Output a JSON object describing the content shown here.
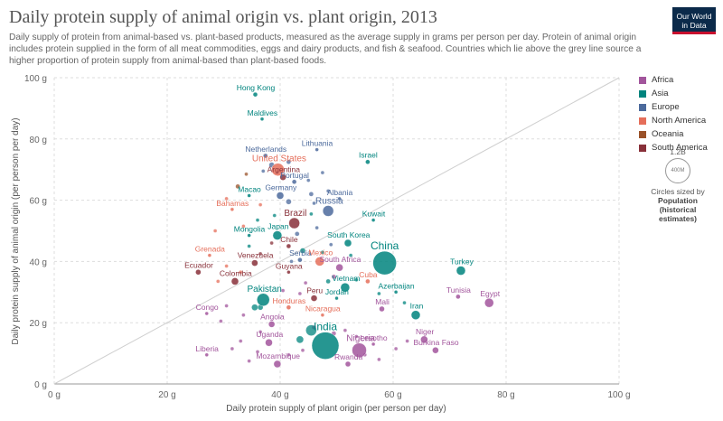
{
  "header": {
    "title": "Daily protein supply of animal origin vs. plant origin, 2013",
    "subtitle": "Daily supply of protein from animal-based vs. plant-based products, measured as the average supply in grams per person per day. Protein of animal origin includes protein supplied in the form of all meat commodities, eggs and dairy products, and fish & seafood. Countries which lie above the grey line source a higher proportion of protein supply from animal-based than plant-based foods.",
    "logo": "Our World in Data"
  },
  "size_legend": {
    "circle_max_label": "1.2B",
    "circle_min_label": "400M",
    "caption": "Circles sized by",
    "title": "Population",
    "subtitle": "(historical estimates)"
  },
  "colors": {
    "Africa": "#a2559c",
    "Asia": "#00847e",
    "Europe": "#4c6a9c",
    "North America": "#e56e5a",
    "Oceania": "#9a5129",
    "South America": "#883039"
  },
  "chart_data": {
    "type": "scatter",
    "xlabel": "Daily protein supply of plant origin (per person per day)",
    "ylabel": "Daily protein supply of animal origin (per person per day)",
    "xlim": [
      0,
      100
    ],
    "ylim": [
      0,
      100
    ],
    "x_ticks": [
      "0 g",
      "20 g",
      "40 g",
      "60 g",
      "80 g",
      "100 g"
    ],
    "y_ticks": [
      "0 g",
      "20 g",
      "40 g",
      "60 g",
      "80 g",
      "100 g"
    ],
    "grid": true,
    "reference_line": "y = x",
    "legend": [
      "Africa",
      "Asia",
      "Europe",
      "North America",
      "Oceania",
      "South America"
    ],
    "legend_position": "right",
    "points": [
      {
        "label": "Hong Kong",
        "continent": "Asia",
        "x": 35.6,
        "y": 94.5,
        "r": 2.5
      },
      {
        "label": "Maldives",
        "continent": "Asia",
        "x": 36.8,
        "y": 86.5,
        "r": 2
      },
      {
        "label": "Netherlands",
        "continent": "Europe",
        "x": 37.4,
        "y": 74.5,
        "r": 2.5
      },
      {
        "label": "Lithuania",
        "continent": "Europe",
        "x": 46.5,
        "y": 76.5,
        "r": 2
      },
      {
        "label": "Israel",
        "continent": "Asia",
        "x": 55.5,
        "y": 72.5,
        "r": 2.5
      },
      {
        "label": "United States",
        "continent": "North America",
        "x": 39.6,
        "y": 70,
        "r": 7
      },
      {
        "label": "Argentina",
        "continent": "South America",
        "x": 40.5,
        "y": 67.5,
        "r": 3.5
      },
      {
        "label": "Portugal",
        "continent": "Europe",
        "x": 42.5,
        "y": 66,
        "r": 2.5
      },
      {
        "label": "Germany",
        "continent": "Europe",
        "x": 40,
        "y": 61.5,
        "r": 4
      },
      {
        "label": "Macao",
        "continent": "Asia",
        "x": 34.5,
        "y": 61.5,
        "r": 2
      },
      {
        "label": "Albania",
        "continent": "Europe",
        "x": 50.5,
        "y": 60.5,
        "r": 2
      },
      {
        "label": "Russia",
        "continent": "Europe",
        "x": 48.5,
        "y": 56.5,
        "r": 6
      },
      {
        "label": "Bahamas",
        "continent": "North America",
        "x": 31.5,
        "y": 57,
        "r": 2
      },
      {
        "label": "Brazil",
        "continent": "South America",
        "x": 42.5,
        "y": 52.5,
        "r": 6
      },
      {
        "label": "Kuwait",
        "continent": "Asia",
        "x": 56.5,
        "y": 53.5,
        "r": 2
      },
      {
        "label": "Mongolia",
        "continent": "Asia",
        "x": 34.5,
        "y": 48.5,
        "r": 2
      },
      {
        "label": "Japan",
        "continent": "Asia",
        "x": 39.5,
        "y": 48.5,
        "r": 5
      },
      {
        "label": "South Korea",
        "continent": "Asia",
        "x": 52,
        "y": 46,
        "r": 4
      },
      {
        "label": "Chile",
        "continent": "South America",
        "x": 41.5,
        "y": 45,
        "r": 2.5
      },
      {
        "label": "China",
        "continent": "Asia",
        "x": 58.5,
        "y": 39.5,
        "r": 13
      },
      {
        "label": "Grenada",
        "continent": "North America",
        "x": 27.5,
        "y": 42,
        "r": 2
      },
      {
        "label": "Serbia",
        "continent": "Europe",
        "x": 43.5,
        "y": 40.5,
        "r": 2.5
      },
      {
        "label": "Mexico",
        "continent": "North America",
        "x": 47,
        "y": 40,
        "r": 5
      },
      {
        "label": "Venezuela",
        "continent": "South America",
        "x": 35.5,
        "y": 39.5,
        "r": 3.5
      },
      {
        "label": "Ecuador",
        "continent": "South America",
        "x": 25.5,
        "y": 36.5,
        "r": 3
      },
      {
        "label": "South Africa",
        "continent": "Africa",
        "x": 50.5,
        "y": 38,
        "r": 4
      },
      {
        "label": "Guyana",
        "continent": "South America",
        "x": 41.5,
        "y": 36.5,
        "r": 2
      },
      {
        "label": "Turkey",
        "continent": "Asia",
        "x": 72,
        "y": 37,
        "r": 5
      },
      {
        "label": "Colombia",
        "continent": "South America",
        "x": 32,
        "y": 33.5,
        "r": 4
      },
      {
        "label": "Cuba",
        "continent": "North America",
        "x": 55.5,
        "y": 33.5,
        "r": 2.5
      },
      {
        "label": "Vietnam",
        "continent": "Asia",
        "x": 51.5,
        "y": 31.5,
        "r": 5
      },
      {
        "label": "Azerbaijan",
        "continent": "Asia",
        "x": 60.5,
        "y": 30,
        "r": 2
      },
      {
        "label": "Tunisia",
        "continent": "Africa",
        "x": 71.5,
        "y": 28.5,
        "r": 2.5
      },
      {
        "label": "Pakistan",
        "continent": "Asia",
        "x": 37,
        "y": 27.5,
        "r": 7
      },
      {
        "label": "Peru",
        "continent": "South America",
        "x": 46,
        "y": 28,
        "r": 3.5
      },
      {
        "label": "Jordan",
        "continent": "Asia",
        "x": 50,
        "y": 28,
        "r": 2
      },
      {
        "label": "Egypt",
        "continent": "Africa",
        "x": 77,
        "y": 26.5,
        "r": 5
      },
      {
        "label": "Mali",
        "continent": "Africa",
        "x": 58,
        "y": 24.5,
        "r": 3
      },
      {
        "label": "Iran",
        "continent": "Asia",
        "x": 64,
        "y": 22.5,
        "r": 5
      },
      {
        "label": "Honduras",
        "continent": "North America",
        "x": 41.5,
        "y": 25,
        "r": 2.5
      },
      {
        "label": "Congo",
        "continent": "Africa",
        "x": 27,
        "y": 23,
        "r": 2
      },
      {
        "label": "Nicaragua",
        "continent": "North America",
        "x": 47.5,
        "y": 22.5,
        "r": 2
      },
      {
        "label": "Angola",
        "continent": "Africa",
        "x": 38.5,
        "y": 19.5,
        "r": 3.5
      },
      {
        "label": "India",
        "continent": "Asia",
        "x": 48,
        "y": 12.5,
        "r": 15
      },
      {
        "label": "Uganda",
        "continent": "Africa",
        "x": 38,
        "y": 13.5,
        "r": 4
      },
      {
        "label": "Niger",
        "continent": "Africa",
        "x": 65.5,
        "y": 14.5,
        "r": 4
      },
      {
        "label": "Lesotho",
        "continent": "Africa",
        "x": 56.5,
        "y": 13,
        "r": 2
      },
      {
        "label": "Nigeria",
        "continent": "Africa",
        "x": 54,
        "y": 11,
        "r": 8
      },
      {
        "label": "Burkina Faso",
        "continent": "Africa",
        "x": 67.5,
        "y": 11,
        "r": 3.5
      },
      {
        "label": "Liberia",
        "continent": "Africa",
        "x": 27,
        "y": 9.5,
        "r": 2
      },
      {
        "label": "Mozambique",
        "continent": "Africa",
        "x": 39.5,
        "y": 6.5,
        "r": 4
      },
      {
        "label": "Rwanda",
        "continent": "Africa",
        "x": 52,
        "y": 6.5,
        "r": 3
      }
    ],
    "unlabeled_points": [
      {
        "continent": "Europe",
        "x": 38.5,
        "y": 71.5,
        "r": 3
      },
      {
        "continent": "Europe",
        "x": 41.5,
        "y": 72.5,
        "r": 2.5
      },
      {
        "continent": "Europe",
        "x": 37,
        "y": 69.5,
        "r": 2
      },
      {
        "continent": "Europe",
        "x": 45,
        "y": 66.5,
        "r": 2
      },
      {
        "continent": "Europe",
        "x": 47.5,
        "y": 69,
        "r": 2
      },
      {
        "continent": "Europe",
        "x": 45.5,
        "y": 62,
        "r": 2.5
      },
      {
        "continent": "Europe",
        "x": 41.5,
        "y": 59.5,
        "r": 3
      },
      {
        "continent": "Europe",
        "x": 46,
        "y": 59,
        "r": 2
      },
      {
        "continent": "Europe",
        "x": 48.5,
        "y": 63,
        "r": 2
      },
      {
        "continent": "Oceania",
        "x": 32.5,
        "y": 64.5,
        "r": 2.5
      },
      {
        "continent": "Oceania",
        "x": 34,
        "y": 68.5,
        "r": 2
      },
      {
        "continent": "Asia",
        "x": 39,
        "y": 55,
        "r": 2
      },
      {
        "continent": "Asia",
        "x": 36,
        "y": 53.5,
        "r": 2
      },
      {
        "continent": "Asia",
        "x": 45.5,
        "y": 55.5,
        "r": 2
      },
      {
        "continent": "North America",
        "x": 30.5,
        "y": 60.5,
        "r": 2
      },
      {
        "continent": "North America",
        "x": 33.5,
        "y": 51.5,
        "r": 2
      },
      {
        "continent": "North America",
        "x": 28.5,
        "y": 50,
        "r": 2
      },
      {
        "continent": "North America",
        "x": 36.5,
        "y": 58.5,
        "r": 2
      },
      {
        "continent": "Europe",
        "x": 43,
        "y": 49,
        "r": 2.5
      },
      {
        "continent": "Europe",
        "x": 46.5,
        "y": 51,
        "r": 2
      },
      {
        "continent": "Europe",
        "x": 49,
        "y": 45.5,
        "r": 2
      },
      {
        "continent": "South America",
        "x": 38.5,
        "y": 46,
        "r": 2
      },
      {
        "continent": "South America",
        "x": 36.5,
        "y": 42.5,
        "r": 2
      },
      {
        "continent": "Asia",
        "x": 34.5,
        "y": 45,
        "r": 2
      },
      {
        "continent": "Asia",
        "x": 44,
        "y": 43.5,
        "r": 3
      },
      {
        "continent": "Asia",
        "x": 47.5,
        "y": 43,
        "r": 2
      },
      {
        "continent": "Asia",
        "x": 52.5,
        "y": 42,
        "r": 2
      },
      {
        "continent": "Europe",
        "x": 42,
        "y": 40,
        "r": 2
      },
      {
        "continent": "North America",
        "x": 30.5,
        "y": 38.5,
        "r": 2
      },
      {
        "continent": "North America",
        "x": 29,
        "y": 33.5,
        "r": 2
      },
      {
        "continent": "North America",
        "x": 33,
        "y": 36.5,
        "r": 2
      },
      {
        "continent": "Africa",
        "x": 49.5,
        "y": 35,
        "r": 2.5
      },
      {
        "continent": "Africa",
        "x": 44.5,
        "y": 33,
        "r": 2
      },
      {
        "continent": "Asia",
        "x": 48.5,
        "y": 33.5,
        "r": 2.5
      },
      {
        "continent": "Asia",
        "x": 53.5,
        "y": 34,
        "r": 2
      },
      {
        "continent": "Africa",
        "x": 40.5,
        "y": 30.5,
        "r": 2
      },
      {
        "continent": "Africa",
        "x": 43.5,
        "y": 29.5,
        "r": 2
      },
      {
        "continent": "Asia",
        "x": 35.5,
        "y": 25,
        "r": 3.5
      },
      {
        "continent": "Asia",
        "x": 36.5,
        "y": 25,
        "r": 3
      },
      {
        "continent": "Africa",
        "x": 30.5,
        "y": 25.5,
        "r": 2
      },
      {
        "continent": "Africa",
        "x": 33.5,
        "y": 22.5,
        "r": 2
      },
      {
        "continent": "Africa",
        "x": 29.5,
        "y": 20.5,
        "r": 2
      },
      {
        "continent": "Africa",
        "x": 36.5,
        "y": 17,
        "r": 2
      },
      {
        "continent": "Africa",
        "x": 33,
        "y": 14,
        "r": 2
      },
      {
        "continent": "Africa",
        "x": 31.5,
        "y": 11.5,
        "r": 2
      },
      {
        "continent": "Africa",
        "x": 36,
        "y": 10.5,
        "r": 2
      },
      {
        "continent": "Africa",
        "x": 34.5,
        "y": 7.5,
        "r": 2
      },
      {
        "continent": "Africa",
        "x": 41.5,
        "y": 9.5,
        "r": 2
      },
      {
        "continent": "Africa",
        "x": 44,
        "y": 11,
        "r": 2
      },
      {
        "continent": "Africa",
        "x": 46,
        "y": 18.5,
        "r": 2.5
      },
      {
        "continent": "Asia",
        "x": 45.5,
        "y": 17.5,
        "r": 6
      },
      {
        "continent": "Asia",
        "x": 43.5,
        "y": 14.5,
        "r": 4
      },
      {
        "continent": "Africa",
        "x": 49.5,
        "y": 16.5,
        "r": 2.5
      },
      {
        "continent": "Africa",
        "x": 51.5,
        "y": 17.5,
        "r": 2
      },
      {
        "continent": "Africa",
        "x": 53.5,
        "y": 15.5,
        "r": 2
      },
      {
        "continent": "Africa",
        "x": 55,
        "y": 9.5,
        "r": 2
      },
      {
        "continent": "Africa",
        "x": 57.5,
        "y": 8,
        "r": 2
      },
      {
        "continent": "Africa",
        "x": 62.5,
        "y": 14,
        "r": 2
      },
      {
        "continent": "Africa",
        "x": 60.5,
        "y": 11.5,
        "r": 2
      },
      {
        "continent": "Asia",
        "x": 57.5,
        "y": 29.5,
        "r": 2
      },
      {
        "continent": "Asia",
        "x": 62,
        "y": 26.5,
        "r": 2
      }
    ]
  }
}
